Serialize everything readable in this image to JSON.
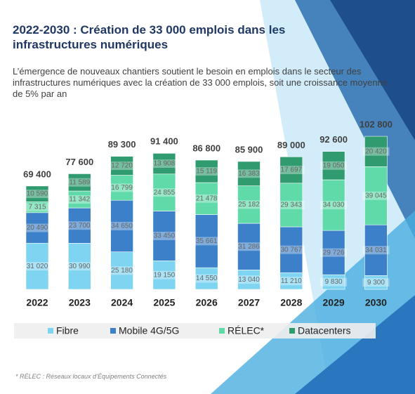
{
  "chart_data": {
    "type": "stacked-bar",
    "title": "2022-2030 : Création de 33 000 emplois dans les infrastructures numériques",
    "subtitle": "L’émergence de nouveaux chantiers soutient le besoin en emplois dans le secteur des infrastructures numériques avec la création de 33 000 emplois, soit une croissance moyenne de 5% par an",
    "categories": [
      "2022",
      "2023",
      "2024",
      "2025",
      "2026",
      "2027",
      "2028",
      "2029",
      "2030"
    ],
    "series": [
      {
        "name": "Fibre",
        "color": "#7fd4f2",
        "values": [
          31020,
          30990,
          25180,
          19150,
          14550,
          13040,
          11210,
          9830,
          9300
        ],
        "value_labels": [
          "31 020",
          "30 990",
          "25 180",
          "19 150",
          "14 550",
          "13 040",
          "11 210",
          "9 830",
          "9 300"
        ]
      },
      {
        "name": "Mobile 4G/5G",
        "color": "#3b80c8",
        "values": [
          20490,
          23700,
          34650,
          33450,
          35661,
          31286,
          30767,
          29726,
          34031
        ],
        "value_labels": [
          "20 490",
          "23 700",
          "34 650",
          "33 450",
          "35 661",
          "31 286",
          "30 767",
          "29 726",
          "34 031"
        ]
      },
      {
        "name": "RÉLEC*",
        "color": "#5fdaa8",
        "values": [
          7315,
          11342,
          16799,
          24855,
          21478,
          25182,
          29343,
          34030,
          39045
        ],
        "value_labels": [
          "7 315",
          "11 342",
          "16 799",
          "24 855",
          "21 478",
          "25 182",
          "29 343",
          "34 030",
          "39 045"
        ]
      },
      {
        "name": "Datacenters",
        "color": "#2f9b6f",
        "values": [
          10590,
          11589,
          12720,
          13908,
          15119,
          16383,
          17697,
          19050,
          20420
        ],
        "value_labels": [
          "10 590",
          "11 589",
          "12 720",
          "13 908",
          "15 119",
          "16 383",
          "17 697",
          "19 050",
          "20 420"
        ]
      }
    ],
    "totals": {
      "values": [
        69400,
        77600,
        89300,
        91400,
        86800,
        85900,
        89000,
        92600,
        102800
      ],
      "value_labels": [
        "69 400",
        "77 600",
        "89 300",
        "91 400",
        "86 800",
        "85 900",
        "89 000",
        "92 600",
        "102 800"
      ]
    },
    "footnote": "* RÉLEC : Réseaux locaux d’Équipements Connectés"
  }
}
